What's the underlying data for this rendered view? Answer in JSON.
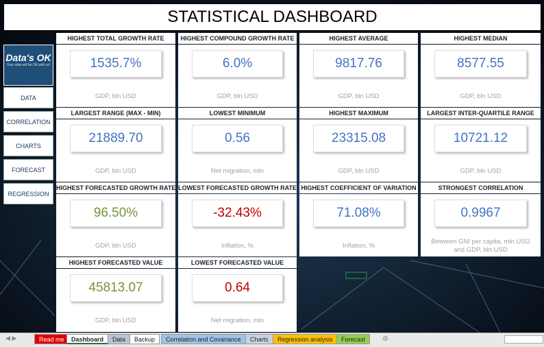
{
  "header": {
    "title": "STATISTICAL DASHBOARD"
  },
  "logo": {
    "name": "Data's OK",
    "tagline": "Your data will be OK with us!"
  },
  "nav": [
    "DATA",
    "CORRELATION",
    "CHARTS",
    "FORECAST",
    "REGRESSION"
  ],
  "cards": [
    {
      "title": "HIGHEST TOTAL GROWTH RATE",
      "value": "1535.7%",
      "caption": "GDP, bln USD",
      "color": "#4472c4"
    },
    {
      "title": "HIGHEST COMPOUND GROWTH RATE",
      "value": "6.0%",
      "caption": "GDP, bln USD",
      "color": "#4472c4"
    },
    {
      "title": "HIGHEST AVERAGE",
      "value": "9817.76",
      "caption": "GDP, bln USD",
      "color": "#4472c4"
    },
    {
      "title": "HIGHEST MEDIAN",
      "value": "8577.55",
      "caption": "GDP, bln USD",
      "color": "#4472c4"
    },
    {
      "title": "LARGEST RANGE (MAX - MIN)",
      "value": "21889.70",
      "caption": "GDP, bln USD",
      "color": "#4472c4"
    },
    {
      "title": "LOWEST MINIMUM",
      "value": "0.56",
      "caption": "Net migration, mln",
      "color": "#4472c4"
    },
    {
      "title": "HIGHEST MAXIMUM",
      "value": "23315.08",
      "caption": "GDP, bln USD",
      "color": "#4472c4"
    },
    {
      "title": "LARGEST INTER-QUARTILE RANGE",
      "value": "10721.12",
      "caption": "GDP, bln USD",
      "color": "#4472c4"
    },
    {
      "title": "HIGHEST FORECASTED GROWTH RATE",
      "value": "96.50%",
      "caption": "GDP, bln USD",
      "color": "#77933c"
    },
    {
      "title": "LOWEST FORECASTED GROWTH RATE",
      "value": "-32.43%",
      "caption": "Inflation, %",
      "color": "#c00000"
    },
    {
      "title": "HIGHEST COEFFICIENT OF VARIATION",
      "value": "71.08%",
      "caption": "Inflation, %",
      "color": "#4472c4"
    },
    {
      "title": "STRONGEST CORRELATION",
      "value": "0.9967",
      "caption": "Between GNI per capita, mln USD and GDP, bln USD",
      "color": "#4472c4"
    },
    {
      "title": "HIGHEST FORECASTED VALUE",
      "value": "45813.07",
      "caption": "GDP, bln USD",
      "color": "#77933c"
    },
    {
      "title": "LOWEST FORECASTED VALUE",
      "value": "0.64",
      "caption": "Net migration, mln",
      "color": "#c00000"
    }
  ],
  "tabs": [
    {
      "name": "Read me",
      "color": "#e00000"
    },
    {
      "name": "Dashboard",
      "color": "#ffffff"
    },
    {
      "name": "Data",
      "color": "#b8c4d6"
    },
    {
      "name": "Backup",
      "color": "#ffffff"
    },
    {
      "name": "Correlation and Covariance",
      "color": "#9dc3e6"
    },
    {
      "name": "Charts",
      "color": "#c9d3e0"
    },
    {
      "name": "Regression analysis",
      "color": "#ffc000"
    },
    {
      "name": "Forecast",
      "color": "#92d050"
    }
  ]
}
